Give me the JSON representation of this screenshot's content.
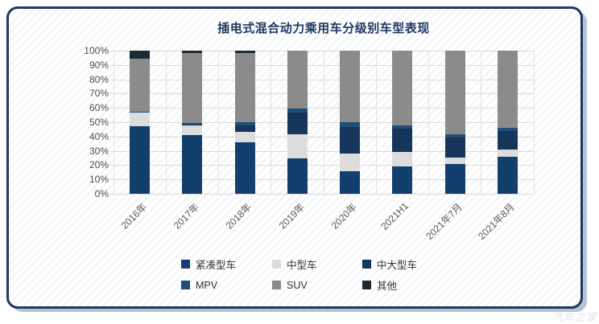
{
  "card": {
    "watermark": "汽车之家"
  },
  "chart_data": {
    "type": "bar",
    "subtype": "stacked-100-percent",
    "title": "插电式混合动力乘用车分级别车型表现",
    "categories": [
      "2016年",
      "2017年",
      "2018年",
      "2019年",
      "2020年",
      "2021H1",
      "2021年7月",
      "2021年8月"
    ],
    "series": [
      {
        "name": "紧凑型车",
        "color": "#123f6d",
        "values": [
          47,
          41,
          36,
          25,
          16,
          19,
          21,
          26
        ]
      },
      {
        "name": "中型车",
        "color": "#dcdcdc",
        "values": [
          9.5,
          7,
          7.5,
          16.5,
          12,
          10.5,
          4.5,
          5
        ]
      },
      {
        "name": "中大型车",
        "color": "#16365c",
        "values": [
          0.5,
          0.5,
          4,
          15,
          18.5,
          16,
          14,
          13
        ]
      },
      {
        "name": "MPV",
        "color": "#1f4e79",
        "values": [
          0.5,
          1,
          2.5,
          3,
          3.5,
          2.5,
          2,
          2
        ]
      },
      {
        "name": "SUV",
        "color": "#8b8b8b",
        "values": [
          37,
          49,
          48.5,
          40.5,
          50,
          52,
          58.5,
          54
        ]
      },
      {
        "name": "其他",
        "color": "#1c2b33",
        "values": [
          5.5,
          1.5,
          1.5,
          0,
          0,
          0,
          0,
          0
        ]
      }
    ],
    "y_ticks": [
      "100%",
      "90%",
      "80%",
      "70%",
      "60%",
      "50%",
      "40%",
      "30%",
      "20%",
      "10%",
      "0%"
    ],
    "ylim": [
      0,
      100
    ],
    "grid": true,
    "legend_position": "bottom",
    "x_label_rotation_deg": -45,
    "accent_colors": {
      "card_border": "#1e3a5f",
      "card_shadow": "#b5c4d1",
      "title": "#1f3864",
      "gridline": "#d9d9d9"
    }
  }
}
